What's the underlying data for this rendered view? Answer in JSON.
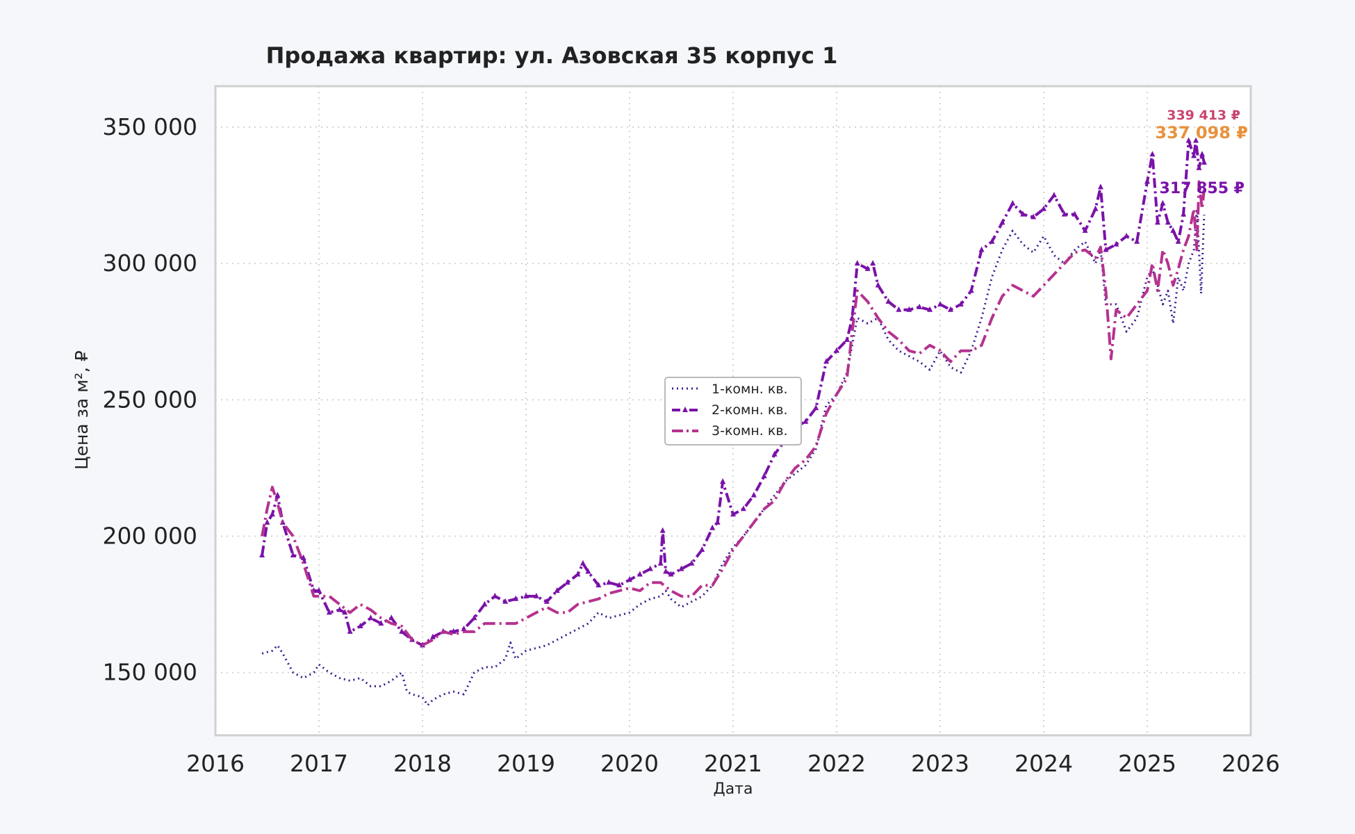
{
  "chart_data": {
    "type": "line",
    "title": "Продажа квартир: ул. Азовская 35 корпус 1",
    "xlabel": "Дата",
    "ylabel": "Цена за м², ₽",
    "xlim": [
      2016.0,
      2026.0
    ],
    "ylim": [
      127000,
      365000
    ],
    "x_ticks": [
      "2016",
      "2017",
      "2018",
      "2019",
      "2020",
      "2021",
      "2022",
      "2023",
      "2024",
      "2025",
      "2026"
    ],
    "y_ticks": [
      "150 000",
      "200 000",
      "250 000",
      "300 000",
      "350 000"
    ],
    "grid": true,
    "legend_position": "center",
    "series": [
      {
        "name": "1-комн. кв.",
        "color": "#3b1a8f",
        "style": "dotted",
        "x": [
          2016.45,
          2016.55,
          2016.6,
          2016.65,
          2016.75,
          2016.85,
          2016.95,
          2017.0,
          2017.1,
          2017.2,
          2017.3,
          2017.4,
          2017.5,
          2017.6,
          2017.7,
          2017.8,
          2017.85,
          2017.9,
          2018.0,
          2018.05,
          2018.1,
          2018.2,
          2018.3,
          2018.4,
          2018.5,
          2018.6,
          2018.7,
          2018.8,
          2018.85,
          2018.9,
          2019.0,
          2019.1,
          2019.2,
          2019.3,
          2019.4,
          2019.5,
          2019.6,
          2019.7,
          2019.8,
          2019.9,
          2020.0,
          2020.1,
          2020.2,
          2020.3,
          2020.35,
          2020.4,
          2020.5,
          2020.6,
          2020.7,
          2020.8,
          2020.9,
          2021.0,
          2021.1,
          2021.2,
          2021.3,
          2021.4,
          2021.5,
          2021.6,
          2021.7,
          2021.8,
          2021.9,
          2022.0,
          2022.1,
          2022.15,
          2022.2,
          2022.3,
          2022.4,
          2022.5,
          2022.6,
          2022.7,
          2022.8,
          2022.9,
          2023.0,
          2023.1,
          2023.2,
          2023.3,
          2023.4,
          2023.5,
          2023.6,
          2023.7,
          2023.8,
          2023.9,
          2024.0,
          2024.1,
          2024.2,
          2024.3,
          2024.4,
          2024.5,
          2024.55,
          2024.6,
          2024.7,
          2024.8,
          2024.9,
          2025.0,
          2025.05,
          2025.1,
          2025.15,
          2025.2,
          2025.25,
          2025.3,
          2025.35,
          2025.4,
          2025.45,
          2025.48,
          2025.5,
          2025.52,
          2025.55
        ],
        "values": [
          157000,
          158000,
          160000,
          157000,
          150000,
          148000,
          150000,
          153000,
          150000,
          148000,
          147000,
          148000,
          145000,
          145000,
          147000,
          150000,
          143000,
          142000,
          141000,
          138000,
          140000,
          142000,
          143000,
          142000,
          150000,
          152000,
          152000,
          155000,
          161000,
          155000,
          158000,
          159000,
          160000,
          162000,
          164000,
          166000,
          168000,
          172000,
          170000,
          171000,
          172000,
          175000,
          177000,
          178000,
          180000,
          177000,
          174000,
          176000,
          178000,
          182000,
          190000,
          196000,
          200000,
          205000,
          210000,
          215000,
          220000,
          223000,
          226000,
          232000,
          248000,
          252000,
          260000,
          270000,
          280000,
          278000,
          280000,
          272000,
          268000,
          266000,
          264000,
          261000,
          268000,
          262000,
          260000,
          268000,
          280000,
          295000,
          305000,
          312000,
          307000,
          304000,
          310000,
          303000,
          300000,
          305000,
          308000,
          300000,
          305000,
          285000,
          285000,
          275000,
          280000,
          295000,
          298000,
          292000,
          285000,
          290000,
          278000,
          295000,
          290000,
          300000,
          305000,
          320000,
          305000,
          289000,
          317855
        ]
      },
      {
        "name": "2-комн. кв.",
        "color": "#7a12a8",
        "style": "dashdot-marker",
        "x": [
          2016.45,
          2016.5,
          2016.55,
          2016.6,
          2016.65,
          2016.75,
          2016.85,
          2016.95,
          2017.0,
          2017.1,
          2017.2,
          2017.25,
          2017.3,
          2017.4,
          2017.5,
          2017.6,
          2017.7,
          2017.8,
          2017.9,
          2018.0,
          2018.1,
          2018.2,
          2018.3,
          2018.4,
          2018.5,
          2018.6,
          2018.7,
          2018.8,
          2018.9,
          2019.0,
          2019.1,
          2019.2,
          2019.3,
          2019.4,
          2019.5,
          2019.55,
          2019.6,
          2019.7,
          2019.8,
          2019.9,
          2020.0,
          2020.1,
          2020.2,
          2020.3,
          2020.32,
          2020.35,
          2020.4,
          2020.5,
          2020.6,
          2020.7,
          2020.8,
          2020.85,
          2020.9,
          2021.0,
          2021.1,
          2021.2,
          2021.3,
          2021.4,
          2021.5,
          2021.6,
          2021.7,
          2021.8,
          2021.9,
          2022.0,
          2022.1,
          2022.15,
          2022.2,
          2022.3,
          2022.35,
          2022.4,
          2022.5,
          2022.6,
          2022.7,
          2022.8,
          2022.9,
          2023.0,
          2023.1,
          2023.2,
          2023.3,
          2023.4,
          2023.5,
          2023.6,
          2023.7,
          2023.8,
          2023.9,
          2024.0,
          2024.1,
          2024.2,
          2024.3,
          2024.4,
          2024.5,
          2024.55,
          2024.6,
          2024.7,
          2024.8,
          2024.9,
          2025.0,
          2025.05,
          2025.1,
          2025.15,
          2025.2,
          2025.25,
          2025.3,
          2025.35,
          2025.4,
          2025.45,
          2025.47,
          2025.5,
          2025.53,
          2025.55
        ],
        "values": [
          193000,
          205000,
          208000,
          215000,
          205000,
          193000,
          192000,
          180000,
          180000,
          172000,
          173000,
          172000,
          165000,
          167000,
          170000,
          168000,
          170000,
          165000,
          162000,
          160000,
          163000,
          165000,
          165000,
          166000,
          170000,
          175000,
          178000,
          176000,
          177000,
          178000,
          178000,
          176000,
          180000,
          183000,
          186000,
          190000,
          187000,
          182000,
          183000,
          182000,
          184000,
          186000,
          188000,
          190000,
          202000,
          187000,
          186000,
          188000,
          190000,
          195000,
          203000,
          205000,
          220000,
          208000,
          210000,
          215000,
          222000,
          230000,
          235000,
          240000,
          242000,
          247000,
          264000,
          268000,
          272000,
          280000,
          300000,
          298000,
          300000,
          292000,
          286000,
          283000,
          283000,
          284000,
          283000,
          285000,
          283000,
          285000,
          290000,
          305000,
          308000,
          315000,
          322000,
          318000,
          317000,
          320000,
          325000,
          318000,
          318000,
          312000,
          320000,
          328000,
          305000,
          307000,
          310000,
          308000,
          330000,
          340000,
          315000,
          322000,
          315000,
          312000,
          308000,
          318000,
          345000,
          339413,
          345000,
          335000,
          340000,
          337000
        ]
      },
      {
        "name": "3-комн. кв.",
        "color": "#b5328f",
        "style": "dashdot",
        "x": [
          2016.45,
          2016.5,
          2016.55,
          2016.6,
          2016.65,
          2016.75,
          2016.85,
          2016.95,
          2017.0,
          2017.1,
          2017.2,
          2017.3,
          2017.4,
          2017.5,
          2017.6,
          2017.7,
          2017.8,
          2017.9,
          2018.0,
          2018.1,
          2018.2,
          2018.3,
          2018.4,
          2018.5,
          2018.6,
          2018.7,
          2018.8,
          2018.9,
          2019.0,
          2019.1,
          2019.2,
          2019.3,
          2019.4,
          2019.5,
          2019.6,
          2019.7,
          2019.8,
          2019.9,
          2020.0,
          2020.1,
          2020.2,
          2020.3,
          2020.4,
          2020.5,
          2020.6,
          2020.7,
          2020.8,
          2020.9,
          2021.0,
          2021.1,
          2021.2,
          2021.3,
          2021.4,
          2021.5,
          2021.6,
          2021.7,
          2021.8,
          2021.9,
          2022.0,
          2022.1,
          2022.15,
          2022.2,
          2022.3,
          2022.4,
          2022.5,
          2022.6,
          2022.7,
          2022.8,
          2022.9,
          2023.0,
          2023.1,
          2023.2,
          2023.3,
          2023.4,
          2023.5,
          2023.6,
          2023.7,
          2023.8,
          2023.9,
          2024.0,
          2024.1,
          2024.2,
          2024.3,
          2024.4,
          2024.5,
          2024.55,
          2024.6,
          2024.65,
          2024.7,
          2024.8,
          2024.9,
          2025.0,
          2025.05,
          2025.1,
          2025.15,
          2025.2,
          2025.25,
          2025.3,
          2025.35,
          2025.4,
          2025.45,
          2025.48,
          2025.5,
          2025.53,
          2025.55
        ],
        "values": [
          200000,
          210000,
          218000,
          212000,
          205000,
          200000,
          190000,
          178000,
          178000,
          178000,
          175000,
          172000,
          175000,
          173000,
          170000,
          168000,
          167000,
          162000,
          160000,
          162000,
          165000,
          164000,
          165000,
          165000,
          168000,
          168000,
          168000,
          168000,
          170000,
          172000,
          174000,
          172000,
          172000,
          175000,
          176000,
          177000,
          179000,
          180000,
          181000,
          180000,
          183000,
          183000,
          180000,
          178000,
          178000,
          182000,
          182000,
          188000,
          195000,
          200000,
          205000,
          210000,
          213000,
          220000,
          225000,
          228000,
          233000,
          245000,
          252000,
          258000,
          275000,
          290000,
          286000,
          280000,
          275000,
          272000,
          268000,
          267000,
          270000,
          268000,
          264000,
          268000,
          268000,
          270000,
          280000,
          288000,
          292000,
          290000,
          288000,
          292000,
          296000,
          300000,
          304000,
          305000,
          302000,
          306000,
          290000,
          265000,
          283000,
          280000,
          285000,
          290000,
          300000,
          290000,
          305000,
          300000,
          292000,
          298000,
          305000,
          310000,
          320000,
          305000,
          330000,
          320000,
          327000
        ]
      }
    ],
    "annotations": [
      {
        "text": "339 413 ₽",
        "color": "#c8456e"
      },
      {
        "text": "337 098 ₽",
        "color": "#e8923c"
      },
      {
        "text": "317 855 ₽",
        "color": "#7a12a8"
      }
    ]
  }
}
